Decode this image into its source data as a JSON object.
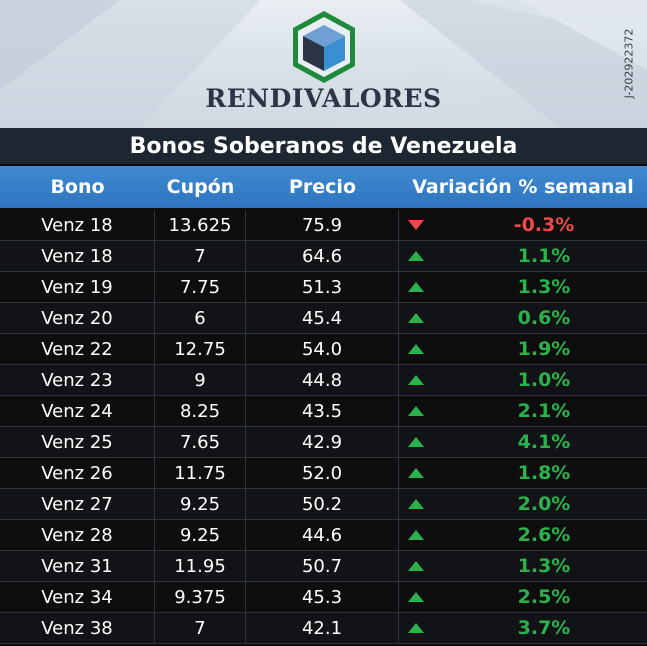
{
  "brand": {
    "name": "RENDIVALORES",
    "rif": "J-202922372",
    "colors": {
      "green": "#1f8a3c",
      "blue": "#3a8fd3",
      "navy": "#2b3545"
    }
  },
  "title": "Bonos Soberanos de Venezuela",
  "table": {
    "headers": {
      "bono": "Bono",
      "cupon": "Cupón",
      "precio": "Precio",
      "variacion": "Variación % semanal"
    },
    "rows": [
      {
        "bono": "Venz 18",
        "cupon": "13.625",
        "precio": "75.9",
        "variacion": "-0.3%",
        "direction": "down"
      },
      {
        "bono": "Venz 18",
        "cupon": "7",
        "precio": "64.6",
        "variacion": "1.1%",
        "direction": "up"
      },
      {
        "bono": "Venz 19",
        "cupon": "7.75",
        "precio": "51.3",
        "variacion": "1.3%",
        "direction": "up"
      },
      {
        "bono": "Venz 20",
        "cupon": "6",
        "precio": "45.4",
        "variacion": "0.6%",
        "direction": "up"
      },
      {
        "bono": "Venz 22",
        "cupon": "12.75",
        "precio": "54.0",
        "variacion": "1.9%",
        "direction": "up"
      },
      {
        "bono": "Venz 23",
        "cupon": "9",
        "precio": "44.8",
        "variacion": "1.0%",
        "direction": "up"
      },
      {
        "bono": "Venz 24",
        "cupon": "8.25",
        "precio": "43.5",
        "variacion": "2.1%",
        "direction": "up"
      },
      {
        "bono": "Venz 25",
        "cupon": "7.65",
        "precio": "42.9",
        "variacion": "4.1%",
        "direction": "up"
      },
      {
        "bono": "Venz 26",
        "cupon": "11.75",
        "precio": "52.0",
        "variacion": "1.8%",
        "direction": "up"
      },
      {
        "bono": "Venz 27",
        "cupon": "9.25",
        "precio": "50.2",
        "variacion": "2.0%",
        "direction": "up"
      },
      {
        "bono": "Venz 28",
        "cupon": "9.25",
        "precio": "44.6",
        "variacion": "2.6%",
        "direction": "up"
      },
      {
        "bono": "Venz 31",
        "cupon": "11.95",
        "precio": "50.7",
        "variacion": "1.3%",
        "direction": "up"
      },
      {
        "bono": "Venz 34",
        "cupon": "9.375",
        "precio": "45.3",
        "variacion": "2.5%",
        "direction": "up"
      },
      {
        "bono": "Venz 38",
        "cupon": "7",
        "precio": "42.1",
        "variacion": "3.7%",
        "direction": "up"
      }
    ]
  },
  "indicator_colors": {
    "up": "#2bb34b",
    "down": "#ee4a4a"
  },
  "icons": {
    "up": "triangle-up-icon",
    "down": "triangle-down-icon",
    "logo": "cube-hexagon-logo-icon"
  }
}
